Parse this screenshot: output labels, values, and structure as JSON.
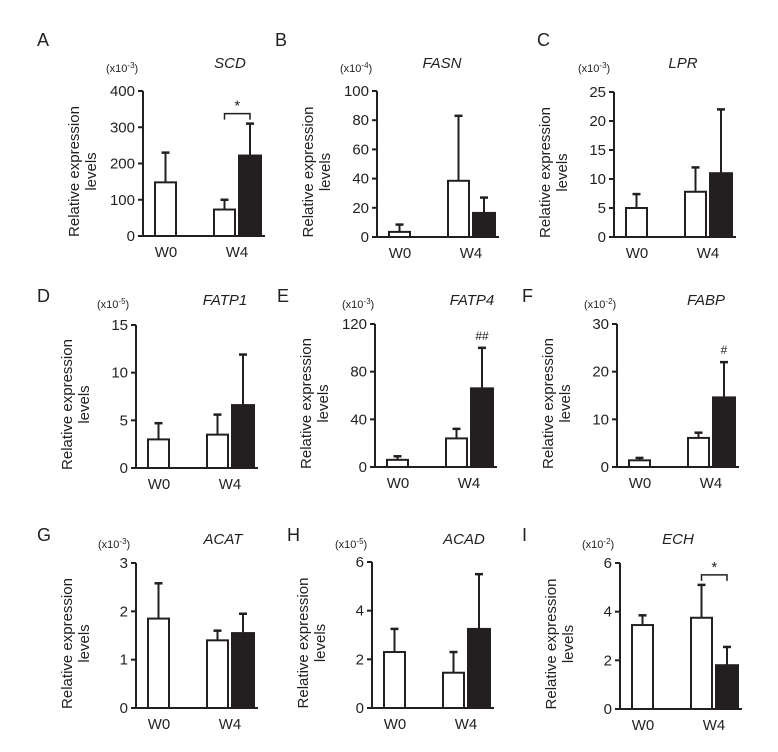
{
  "chart_data": [
    {
      "type": "bar",
      "panel": "A",
      "title": "SCD",
      "scale_label": "(x10",
      "scale_exp": "-3",
      "ylabel": "Relative expression levels",
      "ylim": [
        0,
        400
      ],
      "yticks": [
        0,
        100,
        200,
        300,
        400
      ],
      "categories": [
        "W0",
        "W4"
      ],
      "bars": [
        {
          "category": "W0",
          "group": "white",
          "value": 148,
          "error_upper": 230
        },
        {
          "category": "W4",
          "group": "white",
          "value": 73,
          "error_upper": 100
        },
        {
          "category": "W4",
          "group": "black",
          "value": 222,
          "error_upper": 310
        }
      ],
      "annotations": [
        {
          "type": "bracket",
          "text": "*",
          "category": "W4"
        }
      ]
    },
    {
      "type": "bar",
      "panel": "B",
      "title": "FASN",
      "scale_label": "(x10",
      "scale_exp": "-4",
      "ylabel": "Relative expression levels",
      "ylim": [
        0,
        100
      ],
      "yticks": [
        0,
        20,
        40,
        60,
        80,
        100
      ],
      "categories": [
        "W0",
        "W4"
      ],
      "bars": [
        {
          "category": "W0",
          "group": "white",
          "value": 3.5,
          "error_upper": 8.5
        },
        {
          "category": "W4",
          "group": "white",
          "value": 38.5,
          "error_upper": 83
        },
        {
          "category": "W4",
          "group": "black",
          "value": 16.5,
          "error_upper": 27
        }
      ],
      "annotations": []
    },
    {
      "type": "bar",
      "panel": "C",
      "title": "LPR",
      "scale_label": "(x10",
      "scale_exp": "-3",
      "ylabel": "Relative expression levels",
      "ylim": [
        0,
        25
      ],
      "yticks": [
        0,
        5,
        10,
        15,
        20,
        25
      ],
      "categories": [
        "W0",
        "W4"
      ],
      "bars": [
        {
          "category": "W0",
          "group": "white",
          "value": 5,
          "error_upper": 7.4
        },
        {
          "category": "W4",
          "group": "white",
          "value": 7.8,
          "error_upper": 12
        },
        {
          "category": "W4",
          "group": "black",
          "value": 11,
          "error_upper": 22
        }
      ],
      "annotations": []
    },
    {
      "type": "bar",
      "panel": "D",
      "title": "FATP1",
      "scale_label": "(x10",
      "scale_exp": "-5",
      "ylabel": "Relative expression levels",
      "ylim": [
        0,
        15
      ],
      "yticks": [
        0,
        5,
        10,
        15
      ],
      "categories": [
        "W0",
        "W4"
      ],
      "bars": [
        {
          "category": "W0",
          "group": "white",
          "value": 3,
          "error_upper": 4.7
        },
        {
          "category": "W4",
          "group": "white",
          "value": 3.5,
          "error_upper": 5.6
        },
        {
          "category": "W4",
          "group": "black",
          "value": 6.6,
          "error_upper": 11.9
        }
      ],
      "annotations": []
    },
    {
      "type": "bar",
      "panel": "E",
      "title": "FATP4",
      "scale_label": "(x10",
      "scale_exp": "-3",
      "ylabel": "Relative expression levels",
      "ylim": [
        0,
        120
      ],
      "yticks": [
        0,
        40,
        80,
        120
      ],
      "categories": [
        "W0",
        "W4"
      ],
      "bars": [
        {
          "category": "W0",
          "group": "white",
          "value": 6,
          "error_upper": 9
        },
        {
          "category": "W4",
          "group": "white",
          "value": 24,
          "error_upper": 32
        },
        {
          "category": "W4",
          "group": "black",
          "value": 66,
          "error_upper": 100
        }
      ],
      "annotations": [
        {
          "type": "mark",
          "text": "##",
          "category": "W4",
          "group": "black"
        }
      ]
    },
    {
      "type": "bar",
      "panel": "F",
      "title": "FABP",
      "scale_label": "(x10",
      "scale_exp": "-2",
      "ylabel": "Relative expression levels",
      "ylim": [
        0,
        30
      ],
      "yticks": [
        0,
        10,
        20,
        30
      ],
      "categories": [
        "W0",
        "W4"
      ],
      "bars": [
        {
          "category": "W0",
          "group": "white",
          "value": 1.4,
          "error_upper": 1.9
        },
        {
          "category": "W4",
          "group": "white",
          "value": 6.1,
          "error_upper": 7.2
        },
        {
          "category": "W4",
          "group": "black",
          "value": 14.6,
          "error_upper": 22
        }
      ],
      "annotations": [
        {
          "type": "mark",
          "text": "#",
          "category": "W4",
          "group": "black"
        }
      ]
    },
    {
      "type": "bar",
      "panel": "G",
      "title": "ACAT",
      "scale_label": "(x10",
      "scale_exp": "-3",
      "ylabel": "Relative expression levels",
      "ylim": [
        0,
        3
      ],
      "yticks": [
        0,
        1,
        2,
        3
      ],
      "categories": [
        "W0",
        "W4"
      ],
      "bars": [
        {
          "category": "W0",
          "group": "white",
          "value": 1.85,
          "error_upper": 2.58
        },
        {
          "category": "W4",
          "group": "white",
          "value": 1.4,
          "error_upper": 1.6
        },
        {
          "category": "W4",
          "group": "black",
          "value": 1.55,
          "error_upper": 1.95
        }
      ],
      "annotations": []
    },
    {
      "type": "bar",
      "panel": "H",
      "title": "ACAD",
      "scale_label": "(x10",
      "scale_exp": "-5",
      "ylabel": "Relative expression levels",
      "ylim": [
        0,
        6
      ],
      "yticks": [
        0,
        2,
        4,
        6
      ],
      "categories": [
        "W0",
        "W4"
      ],
      "bars": [
        {
          "category": "W0",
          "group": "white",
          "value": 2.3,
          "error_upper": 3.25
        },
        {
          "category": "W4",
          "group": "white",
          "value": 1.45,
          "error_upper": 2.3
        },
        {
          "category": "W4",
          "group": "black",
          "value": 3.25,
          "error_upper": 5.5
        }
      ],
      "annotations": []
    },
    {
      "type": "bar",
      "panel": "I",
      "title": "ECH",
      "scale_label": "(x10",
      "scale_exp": "-2",
      "ylabel": "Relative expression levels",
      "ylim": [
        0,
        6
      ],
      "yticks": [
        0,
        2,
        4,
        6
      ],
      "categories": [
        "W0",
        "W4"
      ],
      "bars": [
        {
          "category": "W0",
          "group": "white",
          "value": 3.45,
          "error_upper": 3.85
        },
        {
          "category": "W4",
          "group": "white",
          "value": 3.75,
          "error_upper": 5.1
        },
        {
          "category": "W4",
          "group": "black",
          "value": 1.8,
          "error_upper": 2.55
        }
      ],
      "annotations": [
        {
          "type": "bracket",
          "text": "*",
          "category": "W4"
        }
      ]
    }
  ],
  "ylabel_lines": [
    "Relative expression",
    "levels"
  ],
  "colors": {
    "ink": "#231f20",
    "white_bar": "#ffffff",
    "black_bar": "#231f20"
  }
}
